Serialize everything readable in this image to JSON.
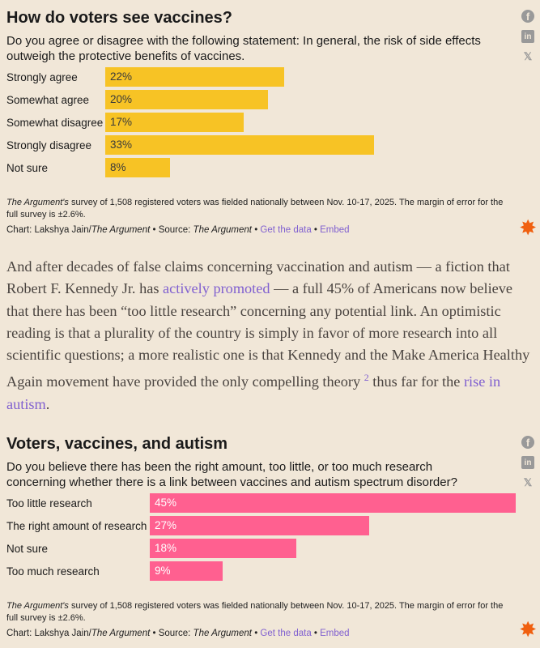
{
  "charts": [
    {
      "title": "How do voters see vaccines?",
      "subtitle": "Do you agree or disagree with the following statement: In general, the risk of side effects outweigh the protective benefits of vaccines.",
      "note_source": "The Argument's",
      "note_rest": " survey of 1,508 registered voters was fielded nationally between Nov. 10-17, 2025. The margin of error for the full survey is ±2.6%.",
      "credit_prefix": "Chart: Lakshya Jain/",
      "credit_pub": "The Argument",
      "credit_source": " • Source: ",
      "credit_source_name": "The Argument",
      "sep": " • ",
      "get_data": "Get the data",
      "embed": "Embed"
    },
    {
      "title": "Voters, vaccines, and autism",
      "subtitle": "Do you believe there has been the right amount, too little, or too much research concerning whether there is a link between vaccines and autism spectrum disorder?",
      "note_source": "The Argument's",
      "note_rest": " survey of 1,508 registered voters was fielded nationally between Nov. 10-17, 2025. The margin of error for the full survey is ±2.6%.",
      "credit_prefix": "Chart: Lakshya Jain/",
      "credit_pub": "The Argument",
      "credit_source": " • Source: ",
      "credit_source_name": "The Argument",
      "sep": " • ",
      "get_data": "Get the data",
      "embed": "Embed"
    }
  ],
  "chart_data": [
    {
      "type": "bar",
      "title": "How do voters see vaccines?",
      "categories": [
        "Strongly agree",
        "Somewhat agree",
        "Somewhat disagree",
        "Strongly disagree",
        "Not sure"
      ],
      "values": [
        22,
        20,
        17,
        33,
        8
      ],
      "labels": [
        "22%",
        "20%",
        "17%",
        "33%",
        "8%"
      ],
      "color": "#f7c325"
    },
    {
      "type": "bar",
      "title": "Voters, vaccines, and autism",
      "categories": [
        "Too little research",
        "The right amount of research",
        "Not sure",
        "Too much research"
      ],
      "values": [
        45,
        27,
        18,
        9
      ],
      "labels": [
        "45%",
        "27%",
        "18%",
        "9%"
      ],
      "color": "#ff6090"
    }
  ],
  "paragraph": {
    "t1": "And after decades of false claims concerning vaccination and autism — a fiction that Robert F. Kennedy Jr. has ",
    "link1": "actively promoted",
    "t2": " — a full 45% of Americans now believe that there has been “too little research” concerning any potential link. An optimistic reading is that a plurality of the country is simply in favor of more research into all scientific questions; a more realistic one is that Kennedy and the Make America Healthy Again movement have provided the only compelling theory ",
    "footnote": "2",
    "t3": " thus far for the ",
    "link2": "rise in autism",
    "t4": "."
  },
  "social": {
    "facebook": "f",
    "linkedin": "in",
    "x": "𝕏"
  }
}
